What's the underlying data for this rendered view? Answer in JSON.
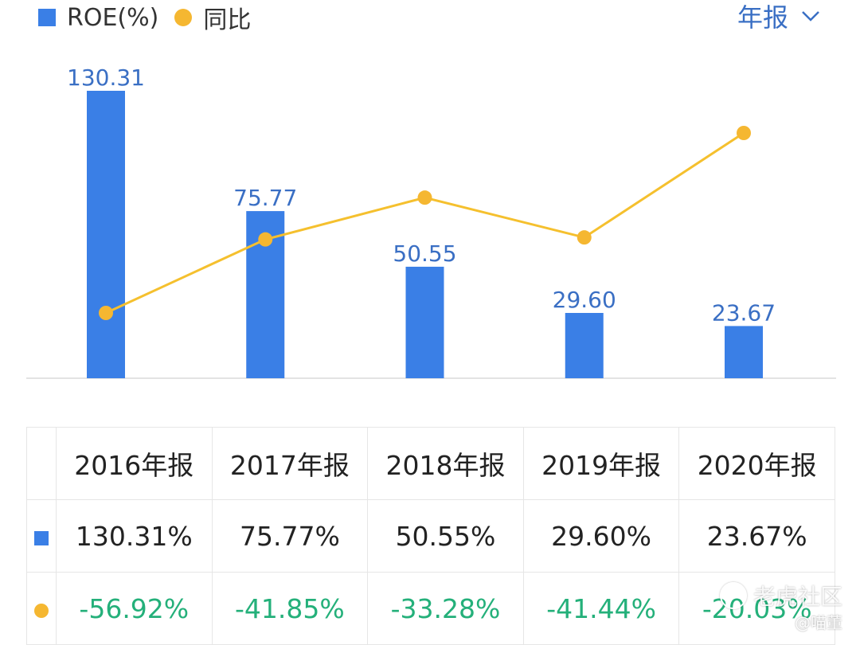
{
  "legend": {
    "bar_label": "ROE(%)",
    "line_label": "同比"
  },
  "period_selector": {
    "label": "年报",
    "icon": "chevron-down-icon"
  },
  "colors": {
    "bar": "#3a7fe6",
    "line": "#f5b731",
    "bar_label": "#3a6fc4",
    "positive_text": "#222222",
    "yoy_text": "#24b07a"
  },
  "chart_data": {
    "type": "bar",
    "categories": [
      "2016年报",
      "2017年报",
      "2018年报",
      "2019年报",
      "2020年报"
    ],
    "series": [
      {
        "name": "ROE(%)",
        "type": "bar",
        "values": [
          130.31,
          75.77,
          50.55,
          29.6,
          23.67
        ],
        "labels": [
          "130.31",
          "75.77",
          "50.55",
          "29.60",
          "23.67"
        ]
      },
      {
        "name": "同比",
        "type": "line",
        "values": [
          -56.92,
          -41.85,
          -33.28,
          -41.44,
          -20.03
        ]
      }
    ],
    "grid": false,
    "legend_position": "top-left"
  },
  "table": {
    "headers": [
      "2016年报",
      "2017年报",
      "2018年报",
      "2019年报",
      "2020年报"
    ],
    "roe_row": [
      "130.31%",
      "75.77%",
      "50.55%",
      "29.60%",
      "23.67%"
    ],
    "yoy_row": [
      "-56.92%",
      "-41.85%",
      "-33.28%",
      "-41.44%",
      "-20.03%"
    ]
  },
  "watermark": {
    "brand": "老虎社区",
    "author": "@喵董"
  }
}
